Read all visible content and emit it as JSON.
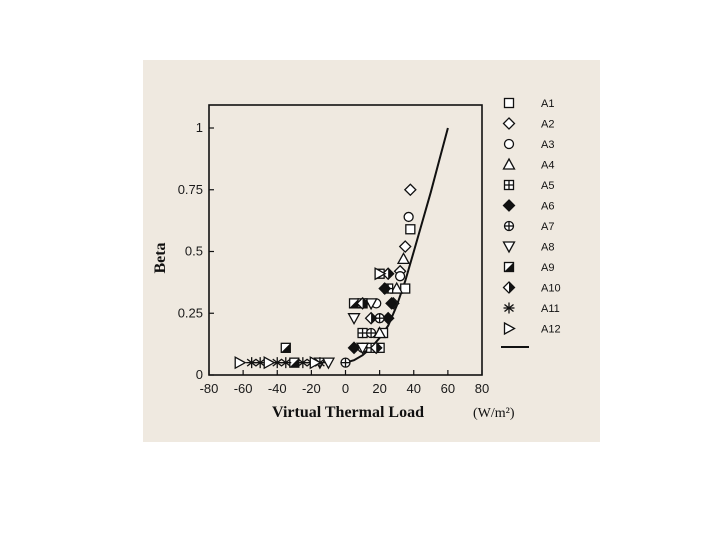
{
  "chart_data": {
    "type": "scatter",
    "title": "",
    "xlabel": "Virtual Thermal Load",
    "x_unit": "(W/m²)",
    "ylabel": "Beta",
    "xlim": [
      -80,
      80
    ],
    "ylim": [
      0,
      1.1
    ],
    "xticks": [
      -80,
      -60,
      -40,
      -20,
      0,
      20,
      40,
      60,
      80
    ],
    "yticks": [
      0,
      0.25,
      0.5,
      0.75,
      1
    ],
    "ytick_labels": [
      "0",
      "0.25",
      "0.5",
      "0.75",
      "1"
    ],
    "grid": false,
    "legend_position": "right",
    "series": [
      {
        "name": "A1",
        "marker": "square-open",
        "points": [
          [
            20,
            0.11
          ],
          [
            22,
            0.17
          ],
          [
            35,
            0.35
          ],
          [
            38,
            0.59
          ]
        ]
      },
      {
        "name": "A2",
        "marker": "diamond-open",
        "points": [
          [
            28,
            0.29
          ],
          [
            32,
            0.42
          ],
          [
            35,
            0.52
          ],
          [
            38,
            0.75
          ]
        ]
      },
      {
        "name": "A3",
        "marker": "circle-open",
        "points": [
          [
            10,
            0.17
          ],
          [
            18,
            0.29
          ],
          [
            32,
            0.4
          ],
          [
            37,
            0.64
          ]
        ]
      },
      {
        "name": "A4",
        "marker": "triangle-open",
        "points": [
          [
            20,
            0.17
          ],
          [
            30,
            0.35
          ],
          [
            34,
            0.47
          ]
        ]
      },
      {
        "name": "A5",
        "marker": "square-grid",
        "points": [
          [
            10,
            0.17
          ],
          [
            15,
            0.11
          ],
          [
            20,
            0.41
          ],
          [
            25,
            0.35
          ]
        ]
      },
      {
        "name": "A6",
        "marker": "diamond-filled",
        "points": [
          [
            5,
            0.11
          ],
          [
            23,
            0.35
          ],
          [
            25,
            0.23
          ],
          [
            27,
            0.29
          ]
        ]
      },
      {
        "name": "A7",
        "marker": "circle-cross",
        "points": [
          [
            0,
            0.05
          ],
          [
            10,
            0.11
          ],
          [
            15,
            0.17
          ],
          [
            20,
            0.23
          ]
        ]
      },
      {
        "name": "A8",
        "marker": "triangle-down-open",
        "points": [
          [
            -15,
            0.05
          ],
          [
            -10,
            0.05
          ],
          [
            5,
            0.23
          ],
          [
            10,
            0.11
          ],
          [
            15,
            0.29
          ]
        ]
      },
      {
        "name": "A9",
        "marker": "square-half",
        "points": [
          [
            -35,
            0.11
          ],
          [
            -30,
            0.05
          ],
          [
            5,
            0.29
          ],
          [
            10,
            0.29
          ]
        ]
      },
      {
        "name": "A10",
        "marker": "diamond-half",
        "points": [
          [
            10,
            0.29
          ],
          [
            15,
            0.23
          ],
          [
            18,
            0.11
          ],
          [
            25,
            0.41
          ]
        ]
      },
      {
        "name": "A11",
        "marker": "asterisk",
        "points": [
          [
            -55,
            0.05
          ],
          [
            -50,
            0.05
          ],
          [
            -40,
            0.05
          ],
          [
            -35,
            0.05
          ],
          [
            -25,
            0.05
          ],
          [
            -20,
            0.05
          ],
          [
            -15,
            0.05
          ]
        ]
      },
      {
        "name": "A12",
        "marker": "triangle-right-open",
        "points": [
          [
            -62,
            0.05
          ],
          [
            -45,
            0.05
          ],
          [
            -18,
            0.05
          ],
          [
            20,
            0.41
          ]
        ]
      }
    ],
    "fit_line": {
      "name": "",
      "x": [
        0,
        5,
        10,
        15,
        20,
        25,
        30,
        35,
        40,
        45,
        50,
        55,
        60
      ],
      "y": [
        0.05,
        0.06,
        0.08,
        0.11,
        0.15,
        0.2,
        0.28,
        0.38,
        0.5,
        0.62,
        0.74,
        0.87,
        1.0
      ]
    }
  }
}
